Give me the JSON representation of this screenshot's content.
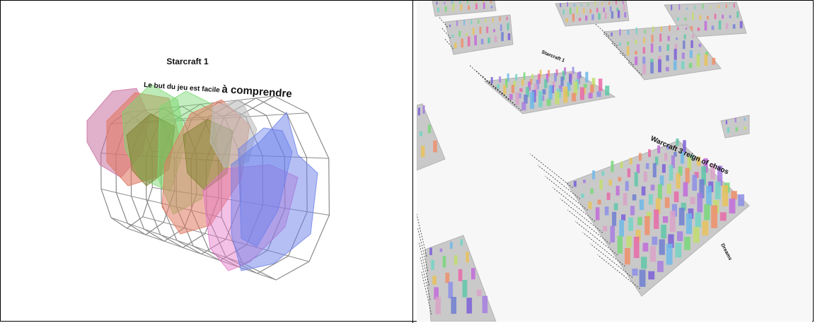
{
  "left_figure": {
    "title": "Starcraft 1",
    "question_prefix": "Le but du jeu est facile ",
    "question_suffix": "à comprendre",
    "colors": {
      "wireframe": "#8a8a8a",
      "pink": "#c86fa0",
      "salmon": "#e07a62",
      "green": "#7bd870",
      "grey": "#bdbdbd",
      "magenta": "#e474c8",
      "blue": "#6b80ea",
      "olive": "#7f8130"
    }
  },
  "right_figure": {
    "board_label_main": "Warcraft 3 reign of chaos",
    "board_label_side": "Starcraft 1",
    "board_label_corner": "Dreams",
    "board_color": "#c9c9c9",
    "floor_color": "#f2f2f2"
  }
}
